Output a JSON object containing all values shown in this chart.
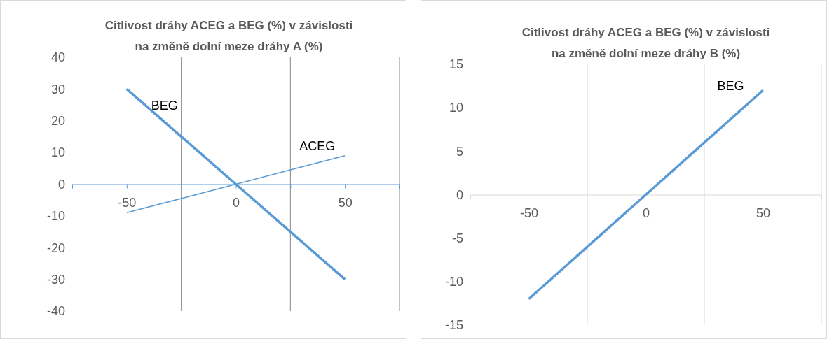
{
  "chart_data": [
    {
      "type": "line",
      "title": "Citlivost dráhy ACEG a BEG (%) v závislosti na změně dolní meze dráhy A (%)",
      "x": [
        -50,
        -25,
        0,
        25,
        50
      ],
      "xlim": [
        -75,
        75
      ],
      "xticks": [
        {
          "value": -75,
          "label": null
        },
        -50,
        {
          "value": -25,
          "label": null
        },
        0,
        {
          "value": 25,
          "label": null
        },
        50,
        {
          "value": 75,
          "label": null
        }
      ],
      "ylim": [
        -40,
        40
      ],
      "yticks": [
        -40,
        -30,
        -20,
        -10,
        0,
        10,
        20,
        30,
        40
      ],
      "grid": "x",
      "marker": "none",
      "line_style": "solid",
      "series": [
        {
          "name": "BEG",
          "color": "#5b9bd5",
          "values": [
            30,
            15,
            0,
            -15,
            -30
          ]
        },
        {
          "name": "ACEG",
          "color": "#5b9bd5",
          "values": [
            -9,
            -4.5,
            0,
            4.5,
            9
          ]
        }
      ]
    },
    {
      "type": "line",
      "title": "Citlivost dráhy ACEG a BEG (%) v závislosti na změně dolní meze dráhy B (%)",
      "x": [
        -50,
        -25,
        0,
        25,
        50
      ],
      "xlim": [
        -75,
        75
      ],
      "xticks": [
        {
          "value": -75,
          "label": null
        },
        -50,
        {
          "value": -25,
          "label": null
        },
        0,
        {
          "value": 25,
          "label": null
        },
        50,
        {
          "value": 75,
          "label": null
        }
      ],
      "ylim": [
        -15,
        15
      ],
      "yticks": [
        -15,
        -10,
        -5,
        0,
        5,
        10,
        15
      ],
      "grid": "x",
      "marker": "none",
      "line_style": "solid",
      "series": [
        {
          "name": "BEG",
          "color": "#5b9bd5",
          "values": [
            -12,
            -6,
            0,
            6,
            12
          ]
        }
      ]
    }
  ]
}
